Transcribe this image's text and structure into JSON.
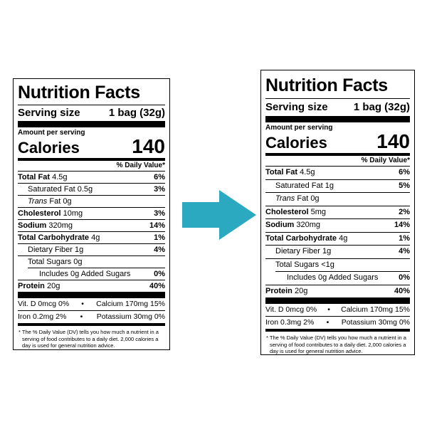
{
  "arrow_color": "#2aa9c1",
  "labels": [
    {
      "title": "Nutrition Facts",
      "serving_label": "Serving size",
      "serving_value": "1 bag (32g)",
      "amount_per_serving": "Amount per serving",
      "calories_label": "Calories",
      "calories_value": "140",
      "dv_header": "% Daily Value*",
      "total_fat": {
        "name": "Total Fat",
        "amount": "4.5g",
        "dv": "6%"
      },
      "saturated_fat": {
        "text": "Saturated Fat 0.5g",
        "dv": "3%"
      },
      "trans_fat": {
        "name": "Trans",
        "rest": " Fat 0g"
      },
      "cholesterol": {
        "name": "Cholesterol",
        "amount": "10mg",
        "dv": "3%"
      },
      "sodium": {
        "name": "Sodium",
        "amount": "320mg",
        "dv": "14%"
      },
      "total_carb": {
        "name": "Total Carbohydrate",
        "amount": "4g",
        "dv": "1%"
      },
      "fiber": {
        "text": "Dietary Fiber 1g",
        "dv": "4%"
      },
      "total_sugars": {
        "text": "Total Sugars 0g"
      },
      "added_sugars": {
        "text": "Includes 0g Added Sugars",
        "dv": "0%"
      },
      "protein": {
        "name": "Protein",
        "amount": "20g",
        "dv": "40%"
      },
      "vit_d": "Vit. D 0mcg 0%",
      "calcium": "Calcium 170mg 15%",
      "iron": "Iron 0.2mg 2%",
      "potassium": "Potassium 30mg 0%",
      "footnote": "* The % Daily Value (DV) tells you how much a nutrient in a serving of food contributes to a daily diet. 2,000 calories a day is used for general nutrition advice."
    },
    {
      "title": "Nutrition Facts",
      "serving_label": "Serving size",
      "serving_value": "1 bag (32g)",
      "amount_per_serving": "Amount per serving",
      "calories_label": "Calories",
      "calories_value": "140",
      "dv_header": "% Daily Value*",
      "total_fat": {
        "name": "Total Fat",
        "amount": "4.5g",
        "dv": "6%"
      },
      "saturated_fat": {
        "text": "Saturated Fat 1g",
        "dv": "5%"
      },
      "trans_fat": {
        "name": "Trans",
        "rest": " Fat 0g"
      },
      "cholesterol": {
        "name": "Cholesterol",
        "amount": "5mg",
        "dv": "2%"
      },
      "sodium": {
        "name": "Sodium",
        "amount": "320mg",
        "dv": "14%"
      },
      "total_carb": {
        "name": "Total Carbohydrate",
        "amount": "4g",
        "dv": "1%"
      },
      "fiber": {
        "text": "Dietary Fiber 1g",
        "dv": "4%"
      },
      "total_sugars": {
        "text": "Total Sugars <1g"
      },
      "added_sugars": {
        "text": "Includes 0g Added Sugars",
        "dv": "0%"
      },
      "protein": {
        "name": "Protein",
        "amount": "20g",
        "dv": "40%"
      },
      "vit_d": "Vit. D 0mcg 0%",
      "calcium": "Calcium 170mg 15%",
      "iron": "Iron 0.3mg 2%",
      "potassium": "Potassium 30mg 0%",
      "footnote": "* The % Daily Value (DV) tells you how much a nutrient in a serving of food contributes to a daily diet. 2,000 calories a day is used for general nutrition advice."
    }
  ]
}
